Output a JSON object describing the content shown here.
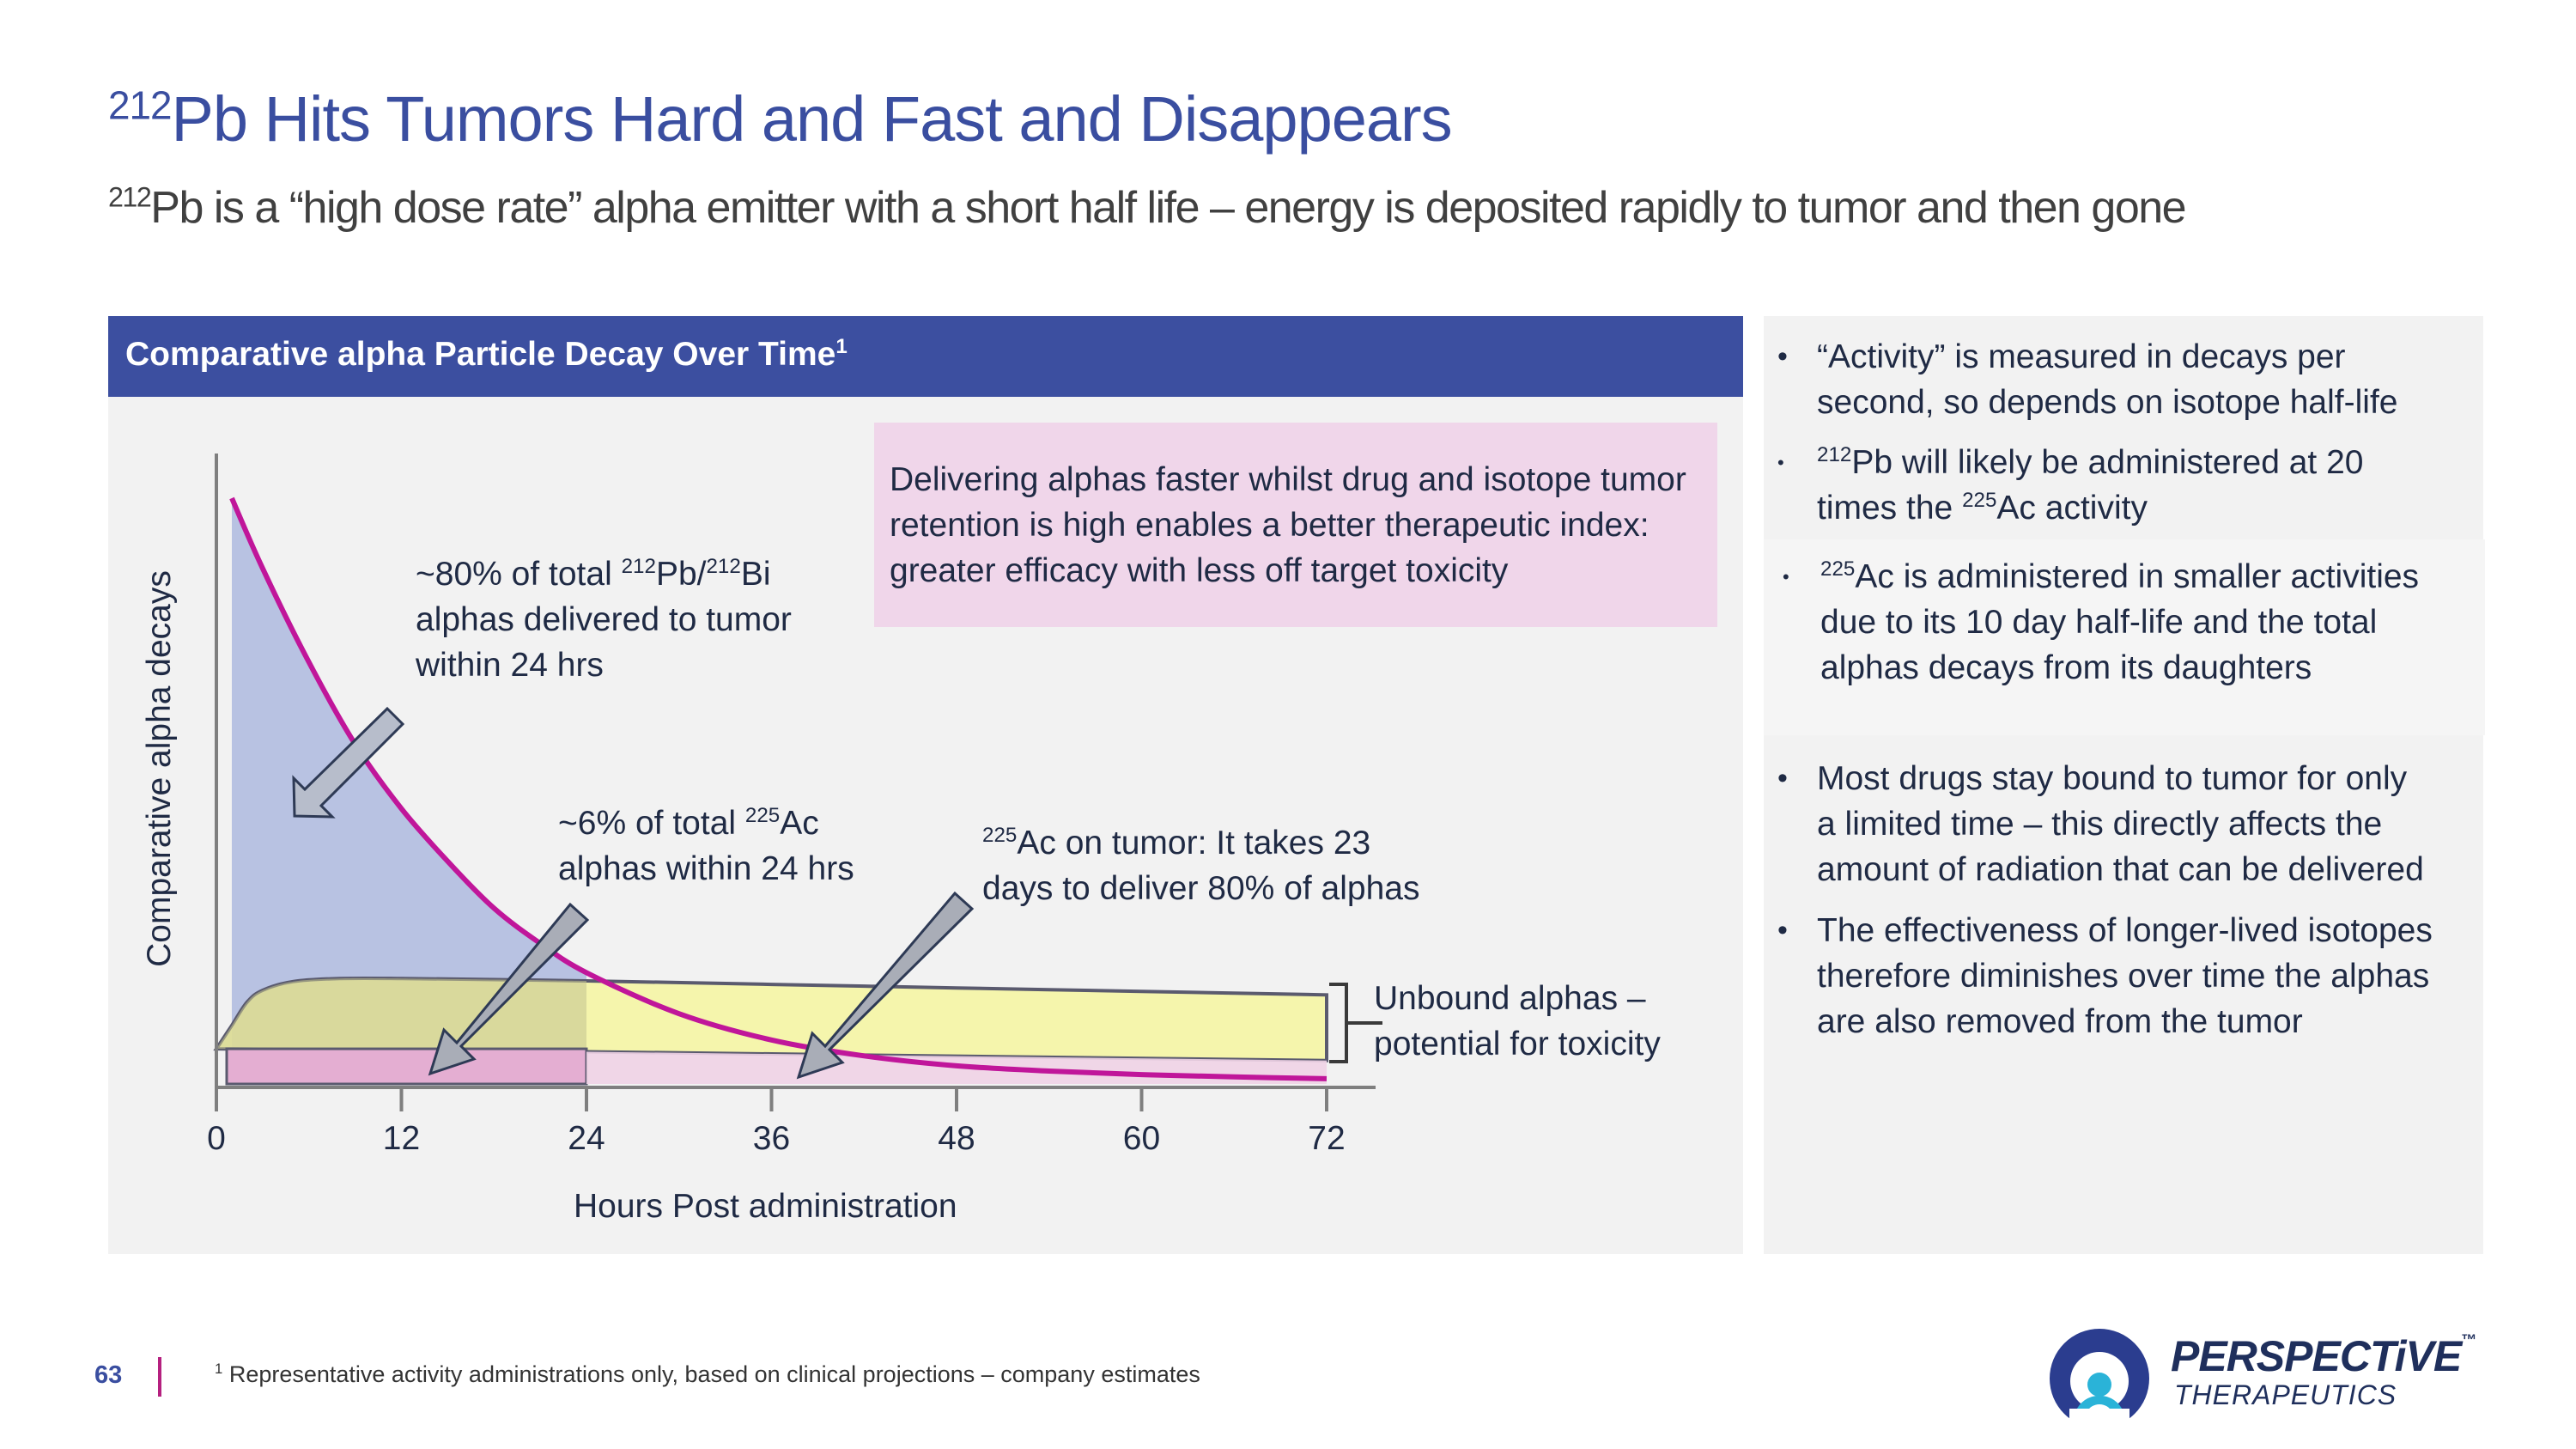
{
  "title": {
    "sup": "212",
    "text": "Pb Hits Tumors Hard and Fast and Disappears"
  },
  "subtitle": {
    "sup": "212",
    "text": "Pb is a “high dose rate” alpha emitter with a short half life – energy is deposited rapidly to tumor and then gone"
  },
  "chart_header": {
    "text": "Comparative alpha Particle Decay Over Time",
    "sup": "1"
  },
  "callout": {
    "text": "Delivering alphas faster whilst drug and isotope tumor retention is high enables a better therapeutic index: greater efficacy with less off target toxicity"
  },
  "annotations": {
    "pb_line1_pre": "~80% of total ",
    "pb_sup1": "212",
    "pb_mid": "Pb/",
    "pb_sup2": "212",
    "pb_line1_post": "Bi",
    "pb_line2": "alphas delivered to tumor",
    "pb_line3": "within 24 hrs",
    "ac6_line1_pre": "~6% of total ",
    "ac6_sup": "225",
    "ac6_line1_post": "Ac",
    "ac6_line2": "alphas within 24 hrs",
    "ac23_sup": "225",
    "ac23_line1": "Ac on tumor: It takes 23",
    "ac23_line2": "days to deliver 80% of alphas",
    "unbound_line1": "Unbound alphas –",
    "unbound_line2": "potential for toxicity"
  },
  "chart_data": {
    "type": "area",
    "title": "Comparative alpha Particle Decay Over Time",
    "xlabel": "Hours Post administration",
    "ylabel": "Comparative alpha decays",
    "x_ticks": [
      "0",
      "12",
      "24",
      "36",
      "48",
      "60",
      "72"
    ],
    "xlim": [
      0,
      72
    ],
    "ylim": [
      0,
      100
    ],
    "grid": false,
    "series": [
      {
        "x": [
          1,
          3,
          6,
          9,
          12,
          15,
          18,
          21,
          24,
          30,
          36,
          42,
          48,
          54,
          60,
          66,
          72
        ],
        "y": [
          100,
          88,
          72,
          58,
          47,
          38,
          30,
          24,
          19,
          12,
          7.5,
          4.8,
          3.1,
          2.2,
          1.6,
          1.2,
          0.9
        ]
      },
      {
        "x": [
          0,
          1,
          2,
          3,
          5,
          8,
          12,
          24,
          36,
          48,
          60,
          72
        ],
        "y": [
          6,
          10,
          14,
          16,
          17.5,
          18,
          18,
          17.6,
          17,
          16.4,
          15.8,
          15.2
        ]
      },
      {
        "x": [
          0,
          24,
          72
        ],
        "y": [
          6,
          5.5,
          4
        ]
      }
    ]
  },
  "bullets": [
    {
      "parts": [
        "“Activity” is measured in decays per",
        "second, so depends on isotope half-life"
      ]
    },
    {
      "sup": "212",
      "parts": [
        "Pb will likely be administered at 20",
        "times the "
      ],
      "sup2": "225",
      "tail": "Ac activity"
    },
    {
      "sup": "225",
      "parts": [
        "Ac is administered in smaller activities",
        "due to its 10 day half-life and the total",
        "alphas decays from its daughters"
      ]
    },
    {
      "parts": [
        "Most drugs stay bound to tumor for only",
        "a limited time – this directly affects the",
        "amount of radiation that can be delivered"
      ]
    },
    {
      "parts": [
        "The effectiveness of longer-lived isotopes",
        "therefore diminishes over time the alphas",
        "are also removed from the tumor"
      ]
    }
  ],
  "bullet_symbol": "•",
  "footer": {
    "page_number": "63",
    "footnote_sup": "1",
    "footnote": " Representative activity administrations only, based on clinical projections – company estimates"
  },
  "logo": {
    "word": "PERSPECTiVE",
    "tm": "™",
    "sub": "THERAPEUTICS"
  },
  "colors": {
    "brand_blue": "#3c4fa0",
    "pb_curve": "#c0169a",
    "pb_fill": "#b4bfe0",
    "ac_fill": "#f6f6a0",
    "pink_bar": "#e4aed2",
    "callout_bg": "#f0d6ea"
  }
}
